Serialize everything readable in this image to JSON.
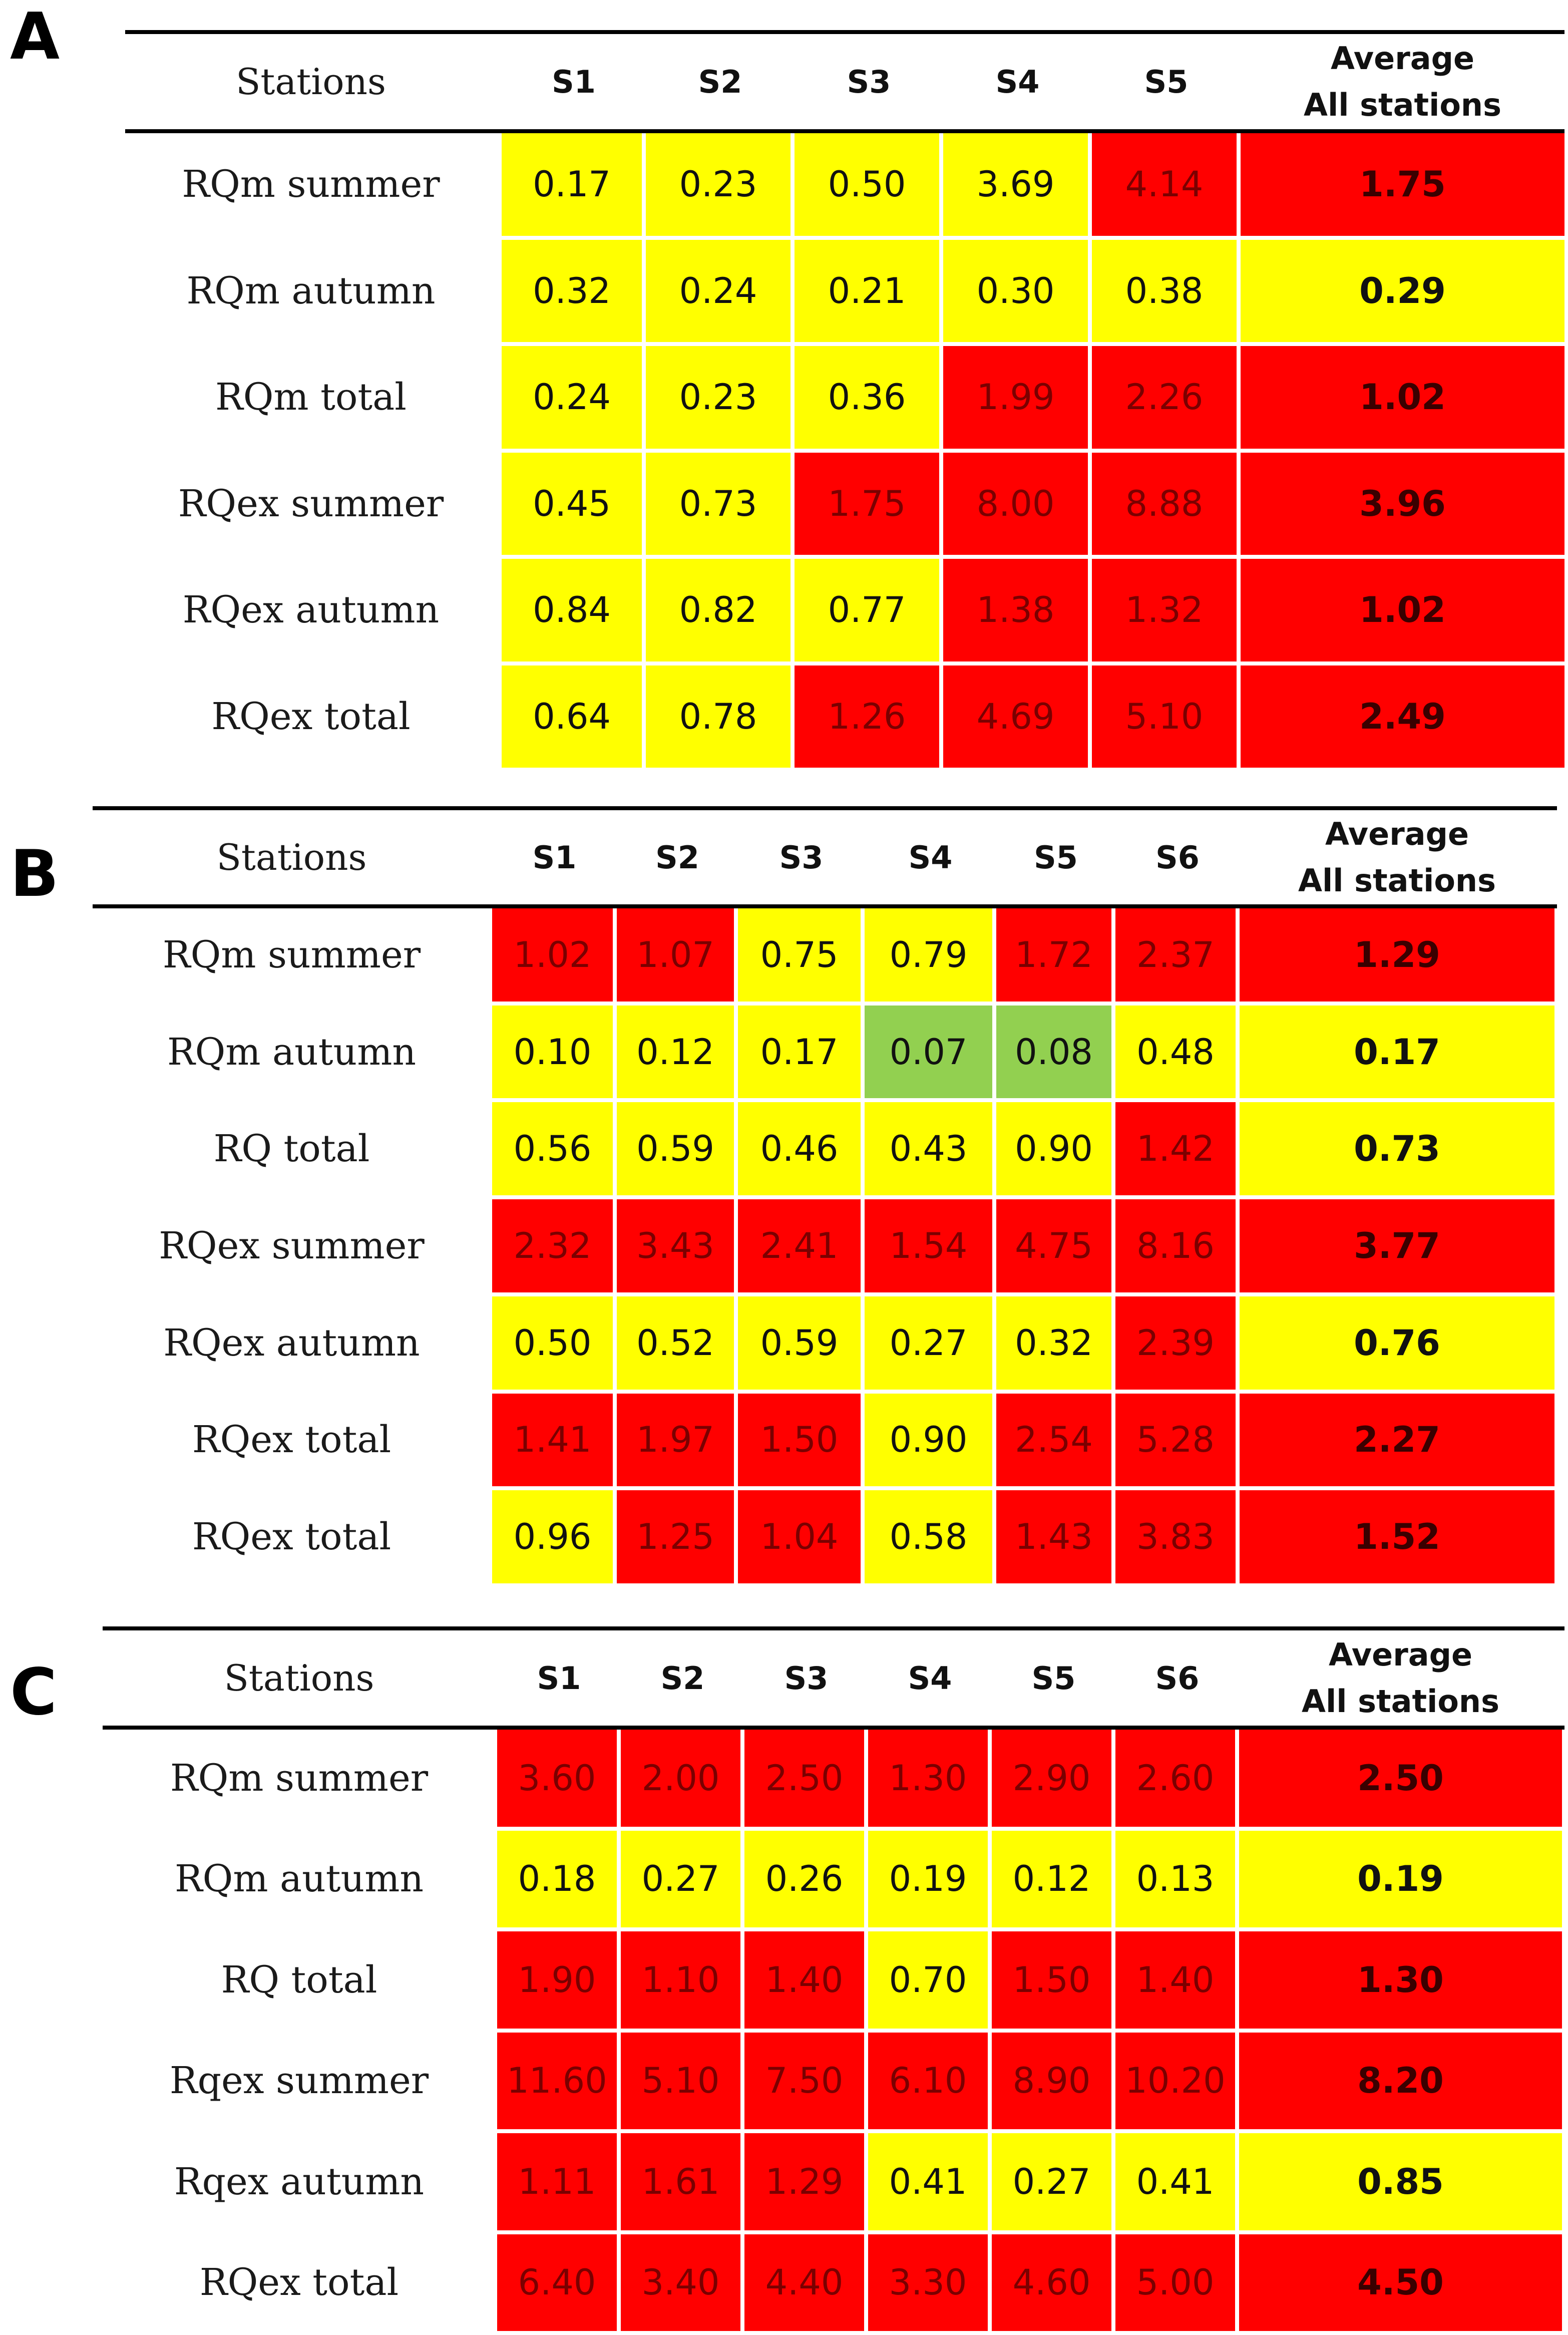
{
  "colors": {
    "red": "#ff0000",
    "yellow": "#ffff00",
    "green": "#92d050"
  },
  "panels": [
    {
      "letter": "A",
      "header": {
        "first": "Stations",
        "stations": [
          "S1",
          "S2",
          "S3",
          "S4",
          "S5"
        ],
        "avg_line1": "Average",
        "avg_line2": "All stations"
      },
      "rows": [
        {
          "label": "RQm summer",
          "values": [
            "0.17",
            "0.23",
            "0.50",
            "3.69",
            "4.14"
          ],
          "avg": "1.75",
          "colors": [
            "yellow",
            "yellow",
            "yellow",
            "yellow",
            "red"
          ],
          "avg_color": "red"
        },
        {
          "label": "RQm autumn",
          "values": [
            "0.32",
            "0.24",
            "0.21",
            "0.30",
            "0.38"
          ],
          "avg": "0.29",
          "colors": [
            "yellow",
            "yellow",
            "yellow",
            "yellow",
            "yellow"
          ],
          "avg_color": "yellow"
        },
        {
          "label": "RQm total",
          "values": [
            "0.24",
            "0.23",
            "0.36",
            "1.99",
            "2.26"
          ],
          "avg": "1.02",
          "colors": [
            "yellow",
            "yellow",
            "yellow",
            "red",
            "red"
          ],
          "avg_color": "red"
        },
        {
          "label": "RQex summer",
          "values": [
            "0.45",
            "0.73",
            "1.75",
            "8.00",
            "8.88"
          ],
          "avg": "3.96",
          "colors": [
            "yellow",
            "yellow",
            "red",
            "red",
            "red"
          ],
          "avg_color": "red"
        },
        {
          "label": "RQex autumn",
          "values": [
            "0.84",
            "0.82",
            "0.77",
            "1.38",
            "1.32"
          ],
          "avg": "1.02",
          "colors": [
            "yellow",
            "yellow",
            "yellow",
            "red",
            "red"
          ],
          "avg_color": "red"
        },
        {
          "label": "RQex total",
          "values": [
            "0.64",
            "0.78",
            "1.26",
            "4.69",
            "5.10"
          ],
          "avg": "2.49",
          "colors": [
            "yellow",
            "yellow",
            "red",
            "red",
            "red"
          ],
          "avg_color": "red"
        }
      ]
    },
    {
      "letter": "B",
      "header": {
        "first": "Stations",
        "stations": [
          "S1",
          "S2",
          "S3",
          "S4",
          "S5",
          "S6"
        ],
        "avg_line1": "Average",
        "avg_line2": "All stations"
      },
      "rows": [
        {
          "label": "RQm summer",
          "values": [
            "1.02",
            "1.07",
            "0.75",
            "0.79",
            "1.72",
            "2.37"
          ],
          "avg": "1.29",
          "colors": [
            "red",
            "red",
            "yellow",
            "yellow",
            "red",
            "red"
          ],
          "avg_color": "red"
        },
        {
          "label": "RQm autumn",
          "values": [
            "0.10",
            "0.12",
            "0.17",
            "0.07",
            "0.08",
            "0.48"
          ],
          "avg": "0.17",
          "colors": [
            "yellow",
            "yellow",
            "yellow",
            "green",
            "green",
            "yellow"
          ],
          "avg_color": "yellow"
        },
        {
          "label": "RQ total",
          "values": [
            "0.56",
            "0.59",
            "0.46",
            "0.43",
            "0.90",
            "1.42"
          ],
          "avg": "0.73",
          "colors": [
            "yellow",
            "yellow",
            "yellow",
            "yellow",
            "yellow",
            "red"
          ],
          "avg_color": "yellow"
        },
        {
          "label": "RQex summer",
          "values": [
            "2.32",
            "3.43",
            "2.41",
            "1.54",
            "4.75",
            "8.16"
          ],
          "avg": "3.77",
          "colors": [
            "red",
            "red",
            "red",
            "red",
            "red",
            "red"
          ],
          "avg_color": "red"
        },
        {
          "label": "RQex autumn",
          "values": [
            "0.50",
            "0.52",
            "0.59",
            "0.27",
            "0.32",
            "2.39"
          ],
          "avg": "0.76",
          "colors": [
            "yellow",
            "yellow",
            "yellow",
            "yellow",
            "yellow",
            "red"
          ],
          "avg_color": "yellow"
        },
        {
          "label": "RQex total",
          "values": [
            "1.41",
            "1.97",
            "1.50",
            "0.90",
            "2.54",
            "5.28"
          ],
          "avg": "2.27",
          "colors": [
            "red",
            "red",
            "red",
            "yellow",
            "red",
            "red"
          ],
          "avg_color": "red"
        },
        {
          "label": "RQex total",
          "values": [
            "0.96",
            "1.25",
            "1.04",
            "0.58",
            "1.43",
            "3.83"
          ],
          "avg": "1.52",
          "colors": [
            "yellow",
            "red",
            "red",
            "yellow",
            "red",
            "red"
          ],
          "avg_color": "red"
        }
      ]
    },
    {
      "letter": "C",
      "header": {
        "first": "Stations",
        "stations": [
          "S1",
          "S2",
          "S3",
          "S4",
          "S5",
          "S6"
        ],
        "avg_line1": "Average",
        "avg_line2": "All stations"
      },
      "rows": [
        {
          "label": "RQm summer",
          "values": [
            "3.60",
            "2.00",
            "2.50",
            "1.30",
            "2.90",
            "2.60"
          ],
          "avg": "2.50",
          "colors": [
            "red",
            "red",
            "red",
            "red",
            "red",
            "red"
          ],
          "avg_color": "red"
        },
        {
          "label": "RQm autumn",
          "values": [
            "0.18",
            "0.27",
            "0.26",
            "0.19",
            "0.12",
            "0.13"
          ],
          "avg": "0.19",
          "colors": [
            "yellow",
            "yellow",
            "yellow",
            "yellow",
            "yellow",
            "yellow"
          ],
          "avg_color": "yellow"
        },
        {
          "label": "RQ total",
          "values": [
            "1.90",
            "1.10",
            "1.40",
            "0.70",
            "1.50",
            "1.40"
          ],
          "avg": "1.30",
          "colors": [
            "red",
            "red",
            "red",
            "yellow",
            "red",
            "red"
          ],
          "avg_color": "red"
        },
        {
          "label": "Rqex summer",
          "values": [
            "11.60",
            "5.10",
            "7.50",
            "6.10",
            "8.90",
            "10.20"
          ],
          "avg": "8.20",
          "colors": [
            "red",
            "red",
            "red",
            "red",
            "red",
            "red"
          ],
          "avg_color": "red"
        },
        {
          "label": "Rqex autumn",
          "values": [
            "1.11",
            "1.61",
            "1.29",
            "0.41",
            "0.27",
            "0.41"
          ],
          "avg": "0.85",
          "colors": [
            "red",
            "red",
            "red",
            "yellow",
            "yellow",
            "yellow"
          ],
          "avg_color": "yellow"
        },
        {
          "label": "RQex total",
          "values": [
            "6.40",
            "3.40",
            "4.40",
            "3.30",
            "4.60",
            "5.00"
          ],
          "avg": "4.50",
          "colors": [
            "red",
            "red",
            "red",
            "red",
            "red",
            "red"
          ],
          "avg_color": "red"
        }
      ]
    }
  ]
}
